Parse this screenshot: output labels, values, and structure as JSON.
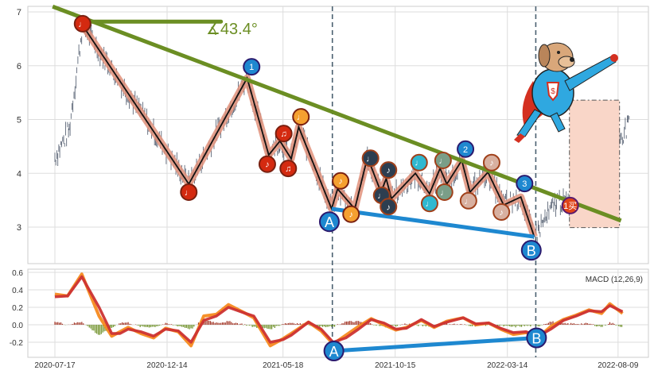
{
  "chart_data": [
    {
      "type": "line",
      "panel": "price",
      "y_ticks": [
        3,
        4,
        5,
        6,
        7
      ],
      "ylim": [
        2.4,
        7.1
      ],
      "x_ticks": [
        "2020-07-17",
        "2020-12-14",
        "2021-05-18",
        "2021-10-15",
        "2022-03-14",
        "2022-08-09"
      ],
      "grid": true,
      "price_path": [
        [
          "2020-07-17",
          4.3
        ],
        [
          "2020-08-05",
          4.8
        ],
        [
          "2020-08-23",
          6.75
        ],
        [
          "2021-01-12",
          3.8
        ],
        [
          "2021-03-31",
          5.77
        ],
        [
          "2021-04-29",
          4.34
        ],
        [
          "2021-05-14",
          4.6
        ],
        [
          "2021-05-29",
          4.27
        ],
        [
          "2021-06-08",
          4.86
        ],
        [
          "2021-07-22",
          3.34
        ],
        [
          "2021-07-30",
          3.71
        ],
        [
          "2021-08-22",
          3.34
        ],
        [
          "2021-09-08",
          4.3
        ],
        [
          "2021-09-26",
          3.65
        ],
        [
          "2021-10-03",
          3.9
        ],
        [
          "2021-10-10",
          3.53
        ],
        [
          "2021-11-11",
          4.0
        ],
        [
          "2021-11-30",
          3.62
        ],
        [
          "2021-12-14",
          4.09
        ],
        [
          "2021-12-23",
          3.8
        ],
        [
          "2022-01-12",
          4.24
        ],
        [
          "2022-01-23",
          3.65
        ],
        [
          "2022-02-16",
          4.02
        ],
        [
          "2022-03-09",
          3.41
        ],
        [
          "2022-04-01",
          3.56
        ],
        [
          "2022-04-19",
          2.82
        ],
        [
          "2022-05-20",
          3.5
        ],
        [
          "2022-06-06",
          3.4
        ],
        [
          "2022-07-10",
          4.8
        ],
        [
          "2022-07-25",
          4.4
        ],
        [
          "2022-08-25",
          4.9
        ]
      ],
      "zigzag": [
        [
          "2020-08-23",
          6.75
        ],
        [
          "2021-01-12",
          3.8
        ],
        [
          "2021-03-31",
          5.77
        ],
        [
          "2021-04-29",
          4.34
        ],
        [
          "2021-05-14",
          4.6
        ],
        [
          "2021-05-29",
          4.27
        ],
        [
          "2021-06-08",
          4.86
        ],
        [
          "2021-07-22",
          3.34
        ],
        [
          "2021-07-30",
          3.71
        ],
        [
          "2021-08-22",
          3.34
        ],
        [
          "2021-09-08",
          4.3
        ],
        [
          "2021-09-26",
          3.65
        ],
        [
          "2021-10-03",
          3.9
        ],
        [
          "2021-10-10",
          3.53
        ],
        [
          "2021-11-11",
          4.0
        ],
        [
          "2021-11-30",
          3.62
        ],
        [
          "2021-12-14",
          4.09
        ],
        [
          "2021-12-23",
          3.8
        ],
        [
          "2022-01-12",
          4.24
        ],
        [
          "2022-01-23",
          3.65
        ],
        [
          "2022-02-16",
          4.02
        ],
        [
          "2022-03-09",
          3.41
        ],
        [
          "2022-04-01",
          3.56
        ],
        [
          "2022-04-19",
          2.82
        ]
      ],
      "trendline": [
        [
          "2020-07-14",
          7.1
        ],
        [
          "2022-08-13",
          3.12
        ]
      ],
      "horizontal_ref": [
        [
          "2020-08-23",
          6.82
        ],
        [
          "2021-02-24",
          6.82
        ]
      ],
      "angle_label": "∡43.4°",
      "support_line": [
        [
          "2021-07-22",
          3.34
        ],
        [
          "2022-04-19",
          2.82
        ]
      ],
      "vertical_dashed": [
        "2021-07-23",
        "2022-04-21"
      ],
      "buy_zone": {
        "from": "2022-06-05",
        "to": "2022-08-11",
        "low": 2.99,
        "high": 5.36
      },
      "markers": [
        {
          "date": "2020-08-23",
          "price": 6.78,
          "label": "♩",
          "color": "#d42a10"
        },
        {
          "date": "2021-01-12",
          "price": 3.65,
          "label": "♩",
          "color": "#d42a10"
        },
        {
          "date": "2021-04-06",
          "price": 5.98,
          "label": "1",
          "color": "#1e88d0"
        },
        {
          "date": "2021-04-27",
          "price": 4.17,
          "label": "♪",
          "color": "#d42a10"
        },
        {
          "date": "2021-05-19",
          "price": 4.74,
          "label": "♫",
          "color": "#d42a10"
        },
        {
          "date": "2021-05-25",
          "price": 4.09,
          "label": "♫",
          "color": "#d42a10"
        },
        {
          "date": "2021-06-11",
          "price": 5.05,
          "label": "♩",
          "color": "#f5a030"
        },
        {
          "date": "2021-07-19",
          "price": 3.1,
          "label": "A",
          "color": "#1e88d0",
          "big": true
        },
        {
          "date": "2021-08-03",
          "price": 3.86,
          "label": "♪",
          "color": "#f5a030"
        },
        {
          "date": "2021-08-17",
          "price": 3.24,
          "label": "♪",
          "color": "#f5a030"
        },
        {
          "date": "2021-09-12",
          "price": 4.28,
          "label": "♩",
          "color": "#2d3e50"
        },
        {
          "date": "2021-10-06",
          "price": 4.06,
          "label": "♪",
          "color": "#2d3e50"
        },
        {
          "date": "2021-09-27",
          "price": 3.59,
          "label": "♩",
          "color": "#2d3e50"
        },
        {
          "date": "2021-10-06",
          "price": 3.38,
          "label": "♪",
          "color": "#2d3e50"
        },
        {
          "date": "2021-11-16",
          "price": 4.2,
          "label": "♩",
          "color": "#30b8d0"
        },
        {
          "date": "2021-11-30",
          "price": 3.44,
          "label": "♩",
          "color": "#30b8d0"
        },
        {
          "date": "2021-12-18",
          "price": 4.24,
          "label": "♩",
          "color": "#7a9e88"
        },
        {
          "date": "2021-12-20",
          "price": 3.65,
          "label": "♩",
          "color": "#7a9e88"
        },
        {
          "date": "2022-01-17",
          "price": 4.45,
          "label": "2",
          "color": "#1e88d0"
        },
        {
          "date": "2022-01-21",
          "price": 3.49,
          "label": "♩",
          "color": "#d8b0a0"
        },
        {
          "date": "2022-02-21",
          "price": 4.2,
          "label": "♪",
          "color": "#d8b0a0"
        },
        {
          "date": "2022-03-06",
          "price": 3.28,
          "label": "♪",
          "color": "#d8b0a0"
        },
        {
          "date": "2022-04-06",
          "price": 3.81,
          "label": "3",
          "color": "#1e88d0"
        },
        {
          "date": "2022-04-15",
          "price": 2.57,
          "label": "B",
          "color": "#1e88d0",
          "big": true
        },
        {
          "date": "2022-06-06",
          "price": 3.4,
          "label": "1买",
          "color": "#e04418"
        }
      ]
    },
    {
      "type": "line",
      "panel": "macd",
      "legend": "MACD (12,26,9)",
      "y_ticks": [
        -0.2,
        0.0,
        0.2,
        0.4,
        0.6
      ],
      "ylim": [
        -0.36,
        0.64
      ],
      "x_ticks": [
        "2020-07-17",
        "2020-12-14",
        "2021-05-18",
        "2021-10-15",
        "2022-03-14",
        "2022-08-09"
      ],
      "grid": true,
      "x": [
        "2020-07-17",
        "2020-08-03",
        "2020-08-22",
        "2020-09-14",
        "2020-10-01",
        "2020-10-12",
        "2020-10-23",
        "2020-11-09",
        "2020-11-26",
        "2020-12-12",
        "2020-12-29",
        "2021-01-15",
        "2021-02-01",
        "2021-02-18",
        "2021-03-06",
        "2021-03-29",
        "2021-04-09",
        "2021-05-01",
        "2021-05-18",
        "2021-05-29",
        "2021-06-21",
        "2021-07-08",
        "2021-07-24",
        "2021-08-10",
        "2021-08-27",
        "2021-09-13",
        "2021-09-30",
        "2021-10-16",
        "2021-10-30",
        "2021-11-19",
        "2021-12-06",
        "2021-12-23",
        "2022-01-14",
        "2022-01-31",
        "2022-02-17",
        "2022-03-05",
        "2022-03-22",
        "2022-04-08",
        "2022-04-25",
        "2022-05-11",
        "2022-05-28",
        "2022-06-14",
        "2022-07-01",
        "2022-07-18",
        "2022-07-29",
        "2022-08-15"
      ],
      "series": [
        {
          "color": "#f58a1f",
          "values": [
            0.35,
            0.33,
            0.58,
            0.1,
            -0.13,
            -0.08,
            -0.03,
            -0.1,
            -0.15,
            -0.04,
            -0.08,
            -0.24,
            0.1,
            0.12,
            0.23,
            0.13,
            0.08,
            -0.24,
            -0.16,
            -0.1,
            0.03,
            -0.07,
            -0.22,
            -0.12,
            -0.02,
            0.07,
            0.0,
            -0.06,
            -0.03,
            0.05,
            -0.03,
            0.04,
            0.08,
            0.0,
            0.02,
            -0.05,
            -0.11,
            -0.09,
            -0.14,
            -0.02,
            0.06,
            0.11,
            0.17,
            0.13,
            0.24,
            0.13
          ]
        },
        {
          "color": "#cc3333",
          "values": [
            0.32,
            0.33,
            0.55,
            0.2,
            -0.1,
            -0.1,
            -0.05,
            -0.08,
            -0.13,
            -0.05,
            -0.07,
            -0.2,
            0.05,
            0.1,
            0.2,
            0.13,
            0.1,
            -0.2,
            -0.17,
            -0.12,
            0.03,
            -0.05,
            -0.2,
            -0.15,
            -0.05,
            0.06,
            0.02,
            -0.05,
            -0.04,
            0.06,
            -0.02,
            0.03,
            0.08,
            0.01,
            0.02,
            -0.04,
            -0.09,
            -0.08,
            -0.13,
            -0.05,
            0.05,
            0.1,
            0.16,
            0.15,
            0.22,
            0.15
          ]
        }
      ],
      "divergence_line": [
        [
          "2021-07-25",
          -0.3,
          "A"
        ],
        [
          "2022-04-22",
          -0.15,
          "B"
        ]
      ],
      "vertical_dashed": [
        "2021-07-23",
        "2022-04-21"
      ]
    }
  ]
}
